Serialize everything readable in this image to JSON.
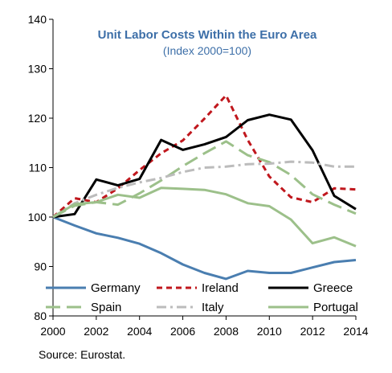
{
  "chart_data": {
    "type": "line",
    "title": "Unit Labor Costs Within the Euro Area",
    "subtitle": "(Index 2000=100)",
    "source": "Source:  Eurostat.",
    "x": [
      2000,
      2001,
      2002,
      2003,
      2004,
      2005,
      2006,
      2007,
      2008,
      2009,
      2010,
      2011,
      2012,
      2013,
      2014
    ],
    "xticks": [
      "2000",
      "2002",
      "2004",
      "2006",
      "2008",
      "2010",
      "2012",
      "2014"
    ],
    "yticks": [
      "80",
      "90",
      "100",
      "110",
      "120",
      "130",
      "140"
    ],
    "ylim": [
      80,
      140
    ],
    "xlim": [
      2000,
      2014
    ],
    "grid": false,
    "legend_position": "bottom, inside plot, 3 columns",
    "series": [
      {
        "name": "Germany",
        "color": "#4a7eb0",
        "dash": "solid",
        "values": [
          100,
          98.3,
          96.7,
          95.8,
          94.6,
          92.7,
          90.4,
          88.7,
          87.5,
          89.1,
          88.7,
          88.7,
          89.8,
          90.9,
          91.3
        ]
      },
      {
        "name": "Ireland",
        "color": "#c0171d",
        "dash": "dash",
        "values": [
          100,
          103.8,
          103.0,
          105.8,
          109.5,
          112.9,
          115.5,
          119.9,
          124.6,
          115.6,
          108.2,
          104.0,
          103.0,
          105.8,
          105.6
        ]
      },
      {
        "name": "Greece",
        "color": "#000000",
        "dash": "solid",
        "values": [
          100,
          100.6,
          107.6,
          106.4,
          107.7,
          115.6,
          113.6,
          114.7,
          116.2,
          119.6,
          120.7,
          119.7,
          113.5,
          104.3,
          101.6
        ]
      },
      {
        "name": "Spain",
        "color": "#9cc08a",
        "dash": "longdash",
        "values": [
          100,
          102.3,
          103.0,
          102.5,
          104.8,
          107.4,
          110.3,
          112.9,
          115.3,
          112.5,
          111.1,
          108.5,
          104.6,
          102.5,
          100.7
        ]
      },
      {
        "name": "Italy",
        "color": "#bcbcbc",
        "dash": "dashdot",
        "values": [
          100,
          102.8,
          104.5,
          105.9,
          107.0,
          107.9,
          109.1,
          110.0,
          110.2,
          110.7,
          110.8,
          111.2,
          111.0,
          110.2,
          110.2
        ]
      },
      {
        "name": "Portugal",
        "color": "#9cc08a",
        "dash": "solid",
        "values": [
          100,
          102.6,
          103.0,
          104.5,
          103.9,
          105.9,
          105.7,
          105.5,
          104.6,
          102.8,
          102.2,
          99.5,
          94.7,
          95.9,
          94.1
        ]
      }
    ]
  }
}
